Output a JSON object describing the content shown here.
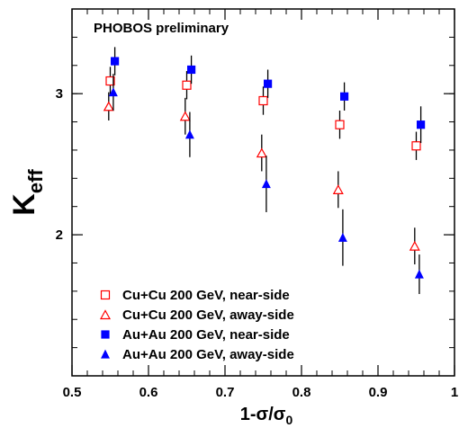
{
  "chart_data": {
    "type": "scatter",
    "title": "",
    "annotation": "PHOBOS preliminary",
    "xlabel": {
      "base": "1-",
      "sigma": "σ",
      "slash": "/",
      "sigma0": "σ",
      "sub": "0"
    },
    "ylabel": {
      "base": "K",
      "sub": "eff"
    },
    "xlim": [
      0.5,
      1.0
    ],
    "ylim": [
      1.0,
      3.6
    ],
    "xticks": [
      {
        "value": 0.5,
        "label": "0.5"
      },
      {
        "value": 0.6,
        "label": "0.6"
      },
      {
        "value": 0.7,
        "label": "0.7"
      },
      {
        "value": 0.8,
        "label": "0.8"
      },
      {
        "value": 0.9,
        "label": "0.9"
      },
      {
        "value": 1.0,
        "label": "1"
      }
    ],
    "yticks": [
      {
        "value": 2,
        "label": "2"
      },
      {
        "value": 3,
        "label": "3"
      }
    ],
    "legend_position": "bottom-left",
    "series": [
      {
        "name": "Cu+Cu 200 GeV, near-side",
        "marker": "open-square",
        "color": "#ff0000",
        "points": [
          {
            "x": 0.55,
            "y": 3.09,
            "err": 0.1
          },
          {
            "x": 0.65,
            "y": 3.06,
            "err": 0.1
          },
          {
            "x": 0.75,
            "y": 2.95,
            "err": 0.1
          },
          {
            "x": 0.85,
            "y": 2.78,
            "err": 0.1
          },
          {
            "x": 0.95,
            "y": 2.63,
            "err": 0.1
          }
        ]
      },
      {
        "name": "Cu+Cu 200 GeV, away-side",
        "marker": "open-triangle",
        "color": "#ff0000",
        "points": [
          {
            "x": 0.548,
            "y": 2.91,
            "err": 0.1
          },
          {
            "x": 0.648,
            "y": 2.84,
            "err": 0.13
          },
          {
            "x": 0.748,
            "y": 2.58,
            "err": 0.13
          },
          {
            "x": 0.848,
            "y": 2.32,
            "err": 0.13
          },
          {
            "x": 0.948,
            "y": 1.92,
            "err": 0.13
          }
        ]
      },
      {
        "name": "Au+Au 200 GeV, near-side",
        "marker": "filled-square",
        "color": "#0000ff",
        "points": [
          {
            "x": 0.556,
            "y": 3.23,
            "err": 0.1
          },
          {
            "x": 0.656,
            "y": 3.17,
            "err": 0.1
          },
          {
            "x": 0.756,
            "y": 3.07,
            "err": 0.1
          },
          {
            "x": 0.856,
            "y": 2.98,
            "err": 0.1
          },
          {
            "x": 0.956,
            "y": 2.78,
            "err": 0.13
          }
        ]
      },
      {
        "name": "Au+Au 200 GeV, away-side",
        "marker": "filled-triangle",
        "color": "#0000ff",
        "points": [
          {
            "x": 0.554,
            "y": 3.01,
            "err": 0.13
          },
          {
            "x": 0.654,
            "y": 2.71,
            "err": 0.16
          },
          {
            "x": 0.754,
            "y": 2.36,
            "err": 0.2
          },
          {
            "x": 0.854,
            "y": 1.98,
            "err": 0.2
          },
          {
            "x": 0.954,
            "y": 1.72,
            "err": 0.14
          }
        ]
      }
    ]
  }
}
